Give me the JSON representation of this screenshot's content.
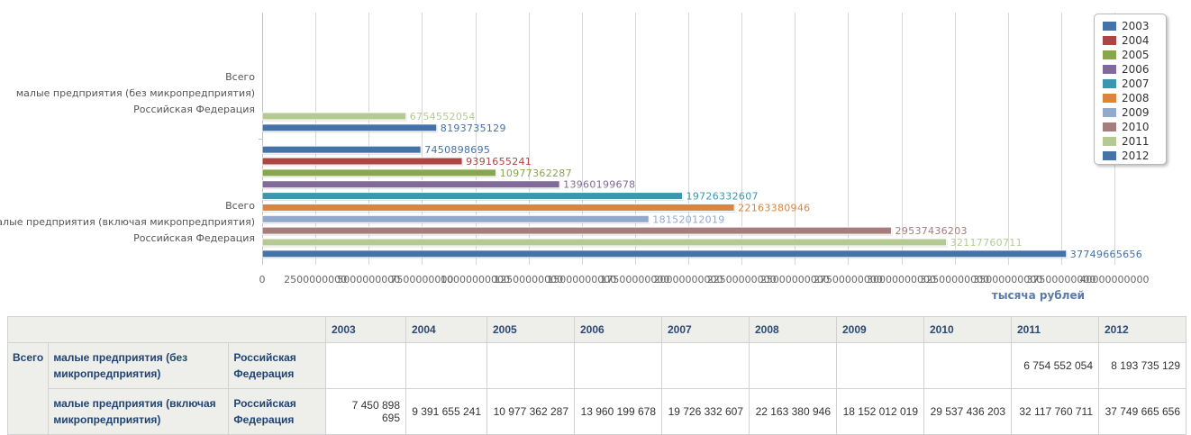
{
  "chart_data": {
    "type": "bar",
    "orientation": "horizontal",
    "unit_label": "тысяча рублей",
    "xlim": [
      0,
      40000000000
    ],
    "x_ticks": [
      0,
      2500000000,
      5000000000,
      7500000000,
      10000000000,
      12500000000,
      15000000000,
      17500000000,
      20000000000,
      22500000000,
      25000000000,
      27500000000,
      30000000000,
      32500000000,
      35000000000,
      37500000000,
      40000000000
    ],
    "x_tick_labels": [
      "0",
      "2500000000",
      "5000000000",
      "7500000000",
      "10000000000",
      "12500000000",
      "15000000000",
      "17500000000",
      "20000000000",
      "22500000000",
      "25000000000",
      "27500000000",
      "30000000000",
      "32500000000",
      "35000000000",
      "37500000000",
      "40000000000"
    ],
    "grid": true,
    "legend_position": "top-right",
    "groups": [
      {
        "labels": [
          "Всего",
          "малые предприятия (без микропредприятия)",
          "Российская Федерация"
        ]
      },
      {
        "labels": [
          "Всего",
          "малые предприятия (включая микропредприятия)",
          "Российская Федерация"
        ]
      }
    ],
    "series": [
      {
        "name": "2003",
        "color": "#4572a7",
        "values": [
          null,
          7450898695
        ]
      },
      {
        "name": "2004",
        "color": "#aa4643",
        "values": [
          null,
          9391655241
        ]
      },
      {
        "name": "2005",
        "color": "#89a54e",
        "values": [
          null,
          10977362287
        ]
      },
      {
        "name": "2006",
        "color": "#80699b",
        "values": [
          null,
          13960199678
        ]
      },
      {
        "name": "2007",
        "color": "#3d96ae",
        "values": [
          null,
          19726332607
        ]
      },
      {
        "name": "2008",
        "color": "#db843d",
        "values": [
          null,
          22163380946
        ]
      },
      {
        "name": "2009",
        "color": "#92a8cd",
        "values": [
          null,
          18152012019
        ]
      },
      {
        "name": "2010",
        "color": "#a47d7c",
        "values": [
          null,
          29537436203
        ]
      },
      {
        "name": "2011",
        "color": "#b5ca92",
        "values": [
          6754552054,
          32117760711
        ]
      },
      {
        "name": "2012",
        "color": "#4572a7",
        "values": [
          8193735129,
          37749665656
        ]
      }
    ]
  },
  "table": {
    "headers": [
      "2003",
      "2004",
      "2005",
      "2006",
      "2007",
      "2008",
      "2009",
      "2010",
      "2011",
      "2012"
    ],
    "rows": [
      {
        "dim1": "Всего",
        "dim2": "малые предприятия (без микропредприятия)",
        "dim3": "Российская Федерация",
        "values": [
          "",
          "",
          "",
          "",
          "",
          "",
          "",
          "",
          "6 754 552 054",
          "8 193 735 129"
        ]
      },
      {
        "dim1": "",
        "dim2": "малые предприятия (включая микропредприятия)",
        "dim3": "Российская Федерация",
        "values": [
          "7 450 898 695",
          "9 391 655 241",
          "10 977 362 287",
          "13 960 199 678",
          "19 726 332 607",
          "22 163 380 946",
          "18 152 012 019",
          "29 537 436 203",
          "32 117 760 711",
          "37 749 665 656"
        ]
      }
    ]
  }
}
